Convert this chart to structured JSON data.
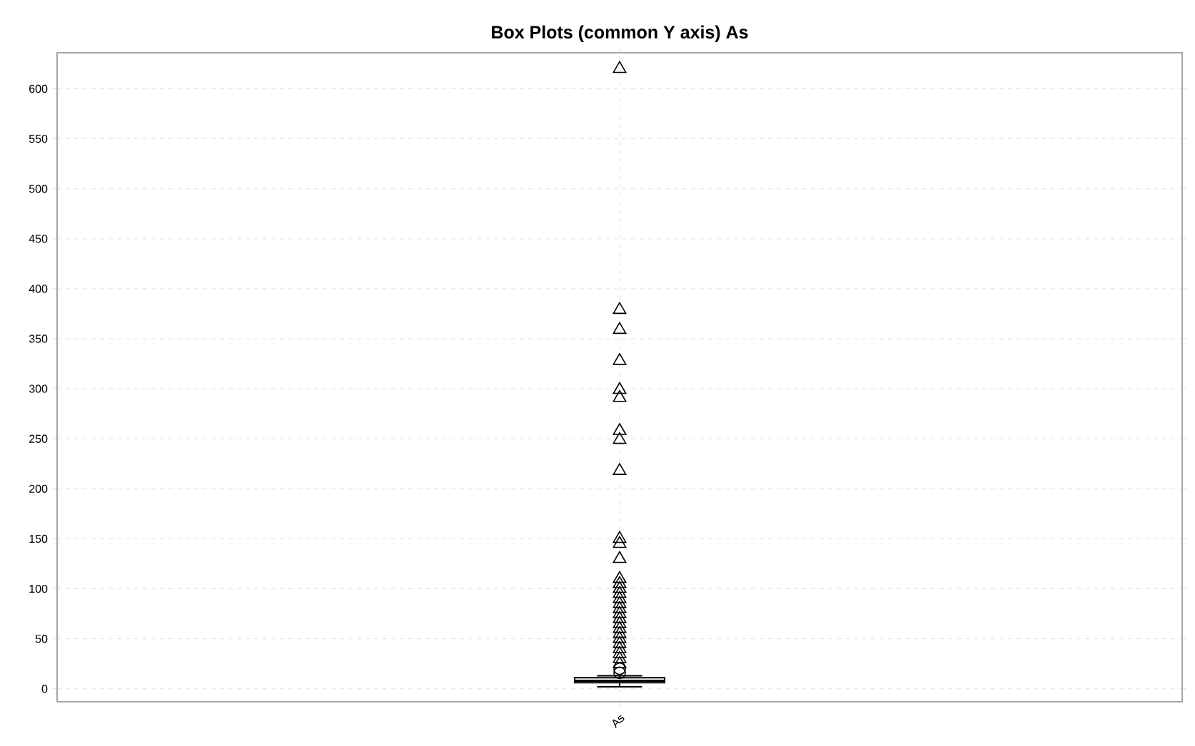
{
  "chart_data": {
    "type": "box",
    "title": "Box Plots (common Y axis) As",
    "categories": [
      "As"
    ],
    "boxes": [
      {
        "low": 2,
        "q1": 6,
        "median": 8,
        "q3": 11,
        "high": 13,
        "outliers": [
          16,
          20,
          25,
          30,
          35,
          40,
          45,
          50,
          55,
          60,
          65,
          70,
          75,
          80,
          85,
          90,
          95,
          100,
          105,
          110,
          130,
          145,
          150,
          218,
          249,
          258,
          291,
          299,
          328,
          359,
          379,
          620
        ]
      }
    ],
    "ylim": [
      -13,
      636
    ],
    "yticks": [
      0,
      50,
      100,
      150,
      200,
      250,
      300,
      350,
      400,
      450,
      500,
      550,
      600
    ],
    "grid": true
  }
}
